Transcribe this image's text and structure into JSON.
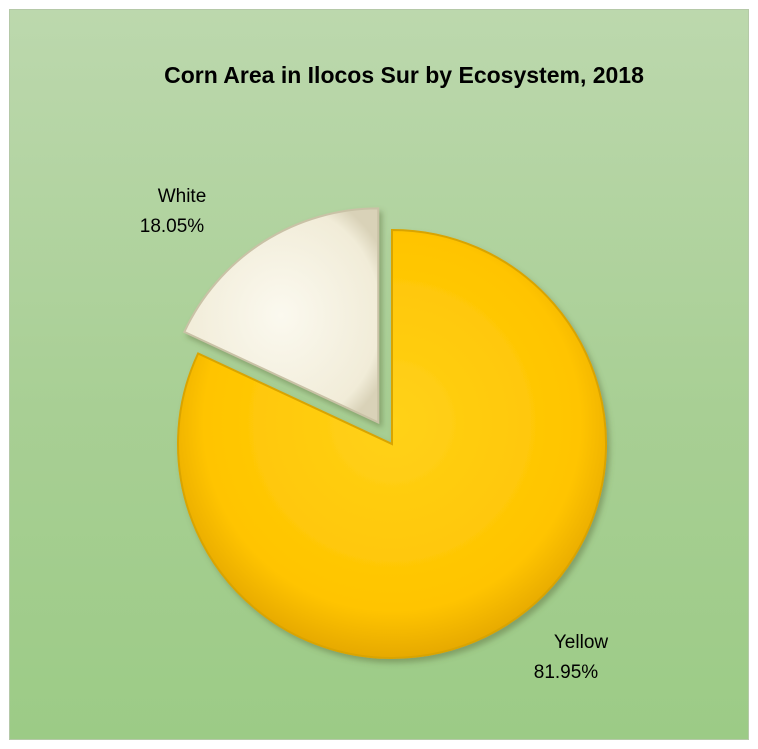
{
  "chart_data": {
    "type": "pie",
    "title": "Corn Area in Ilocos Sur by Ecosystem, 2018",
    "slices": [
      {
        "name": "White",
        "value": 18.05,
        "label": "18.05%",
        "color": "#f4f0de"
      },
      {
        "name": "Yellow",
        "value": 81.95,
        "label": "81.95%",
        "color": "#ffc400"
      }
    ],
    "exploded": true,
    "legend": "none"
  }
}
